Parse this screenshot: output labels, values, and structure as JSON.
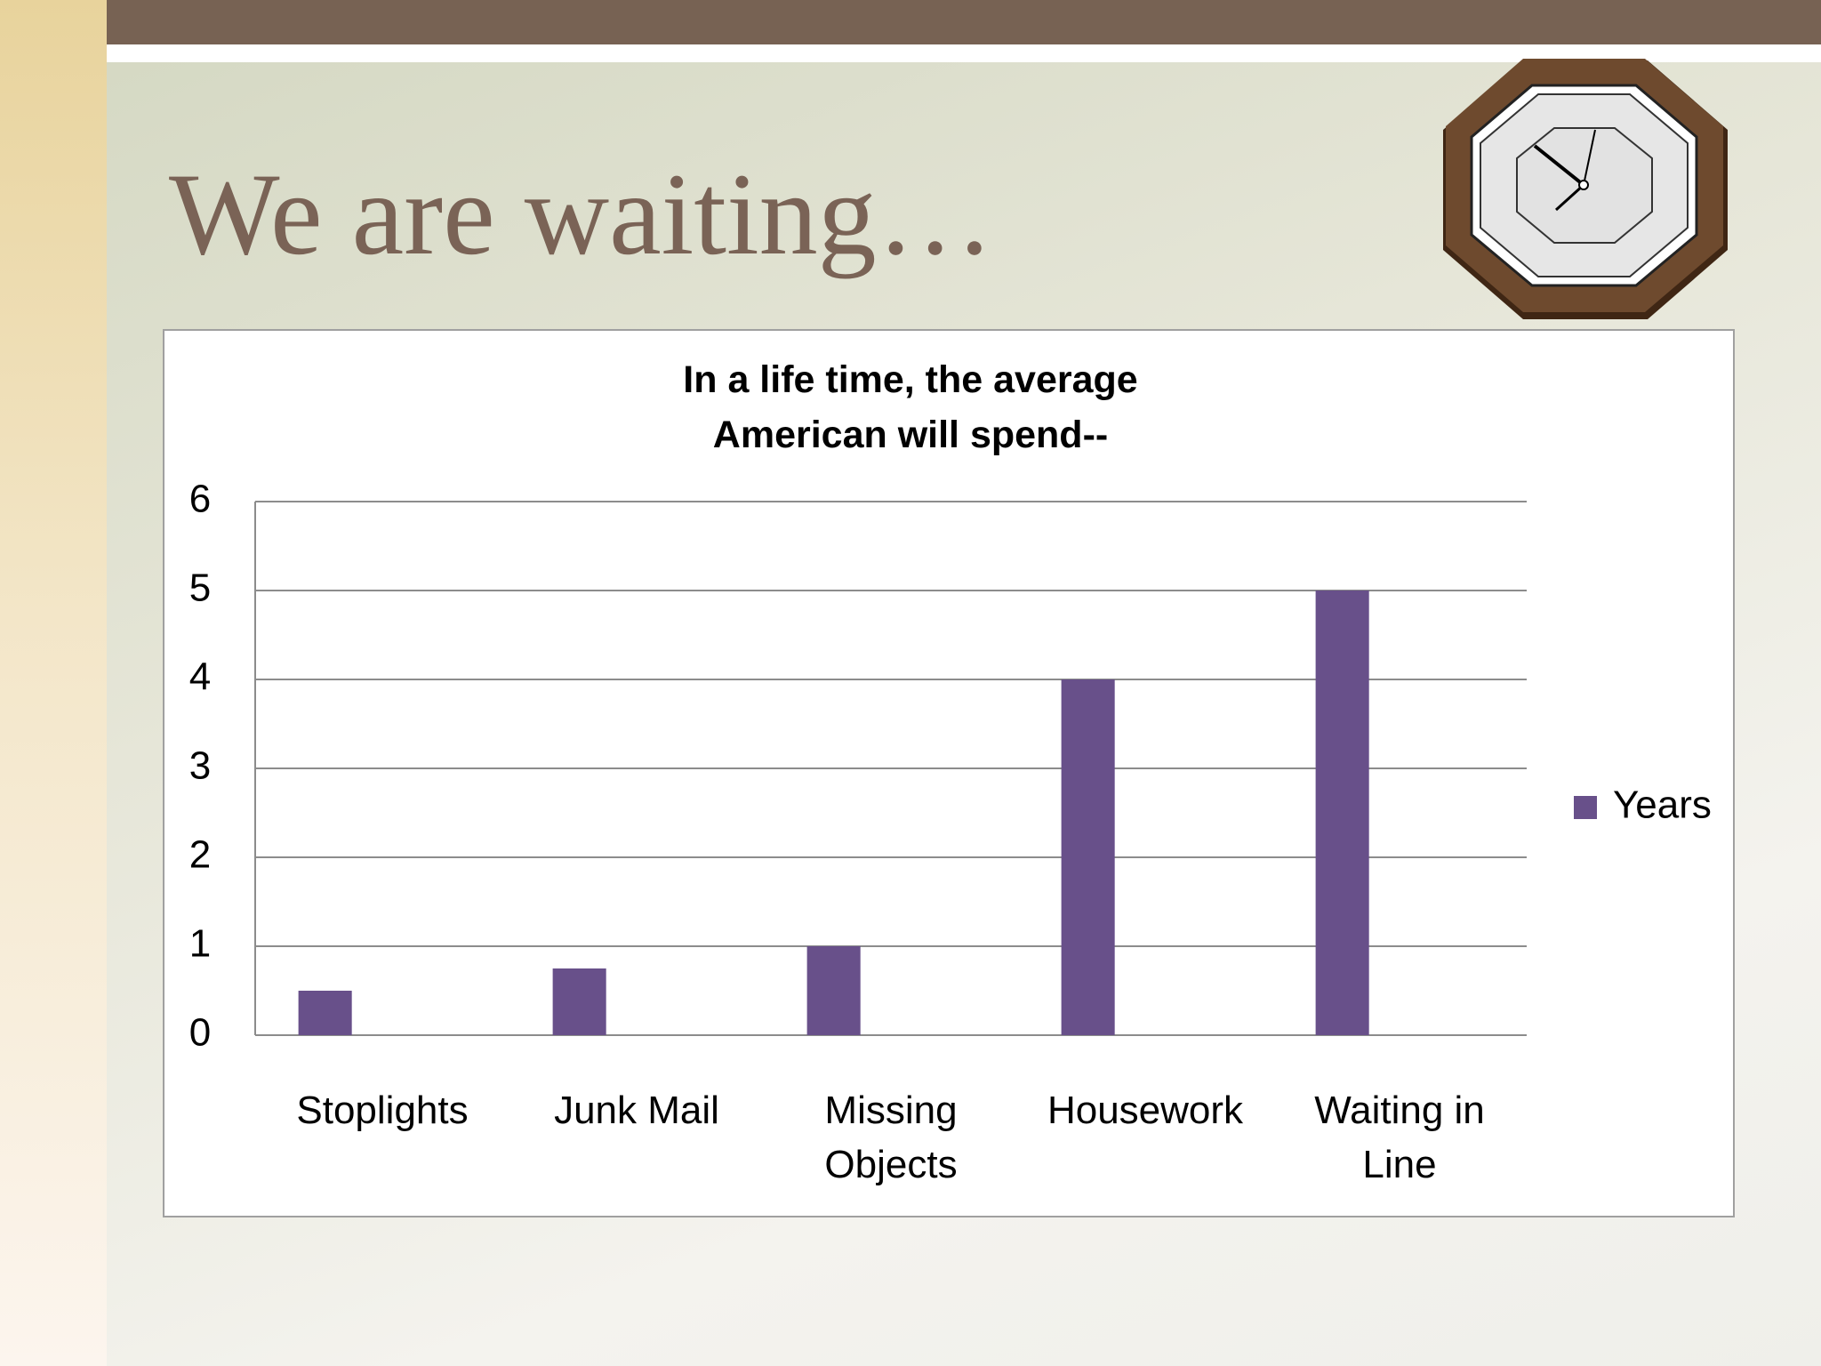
{
  "title": "We are waiting…",
  "chart_data": {
    "type": "bar",
    "title": "In a life time, the average American will spend--",
    "categories": [
      "Stoplights",
      "Junk Mail",
      "Missing Objects",
      "Housework",
      "Waiting in Line"
    ],
    "series": [
      {
        "name": "Years",
        "color": "#68508a",
        "values": [
          0.5,
          0.75,
          1,
          4,
          5
        ]
      }
    ],
    "ylim": [
      0,
      6
    ],
    "yticks": [
      0,
      1,
      2,
      3,
      4,
      5,
      6
    ],
    "grid": true,
    "legend": "right"
  }
}
